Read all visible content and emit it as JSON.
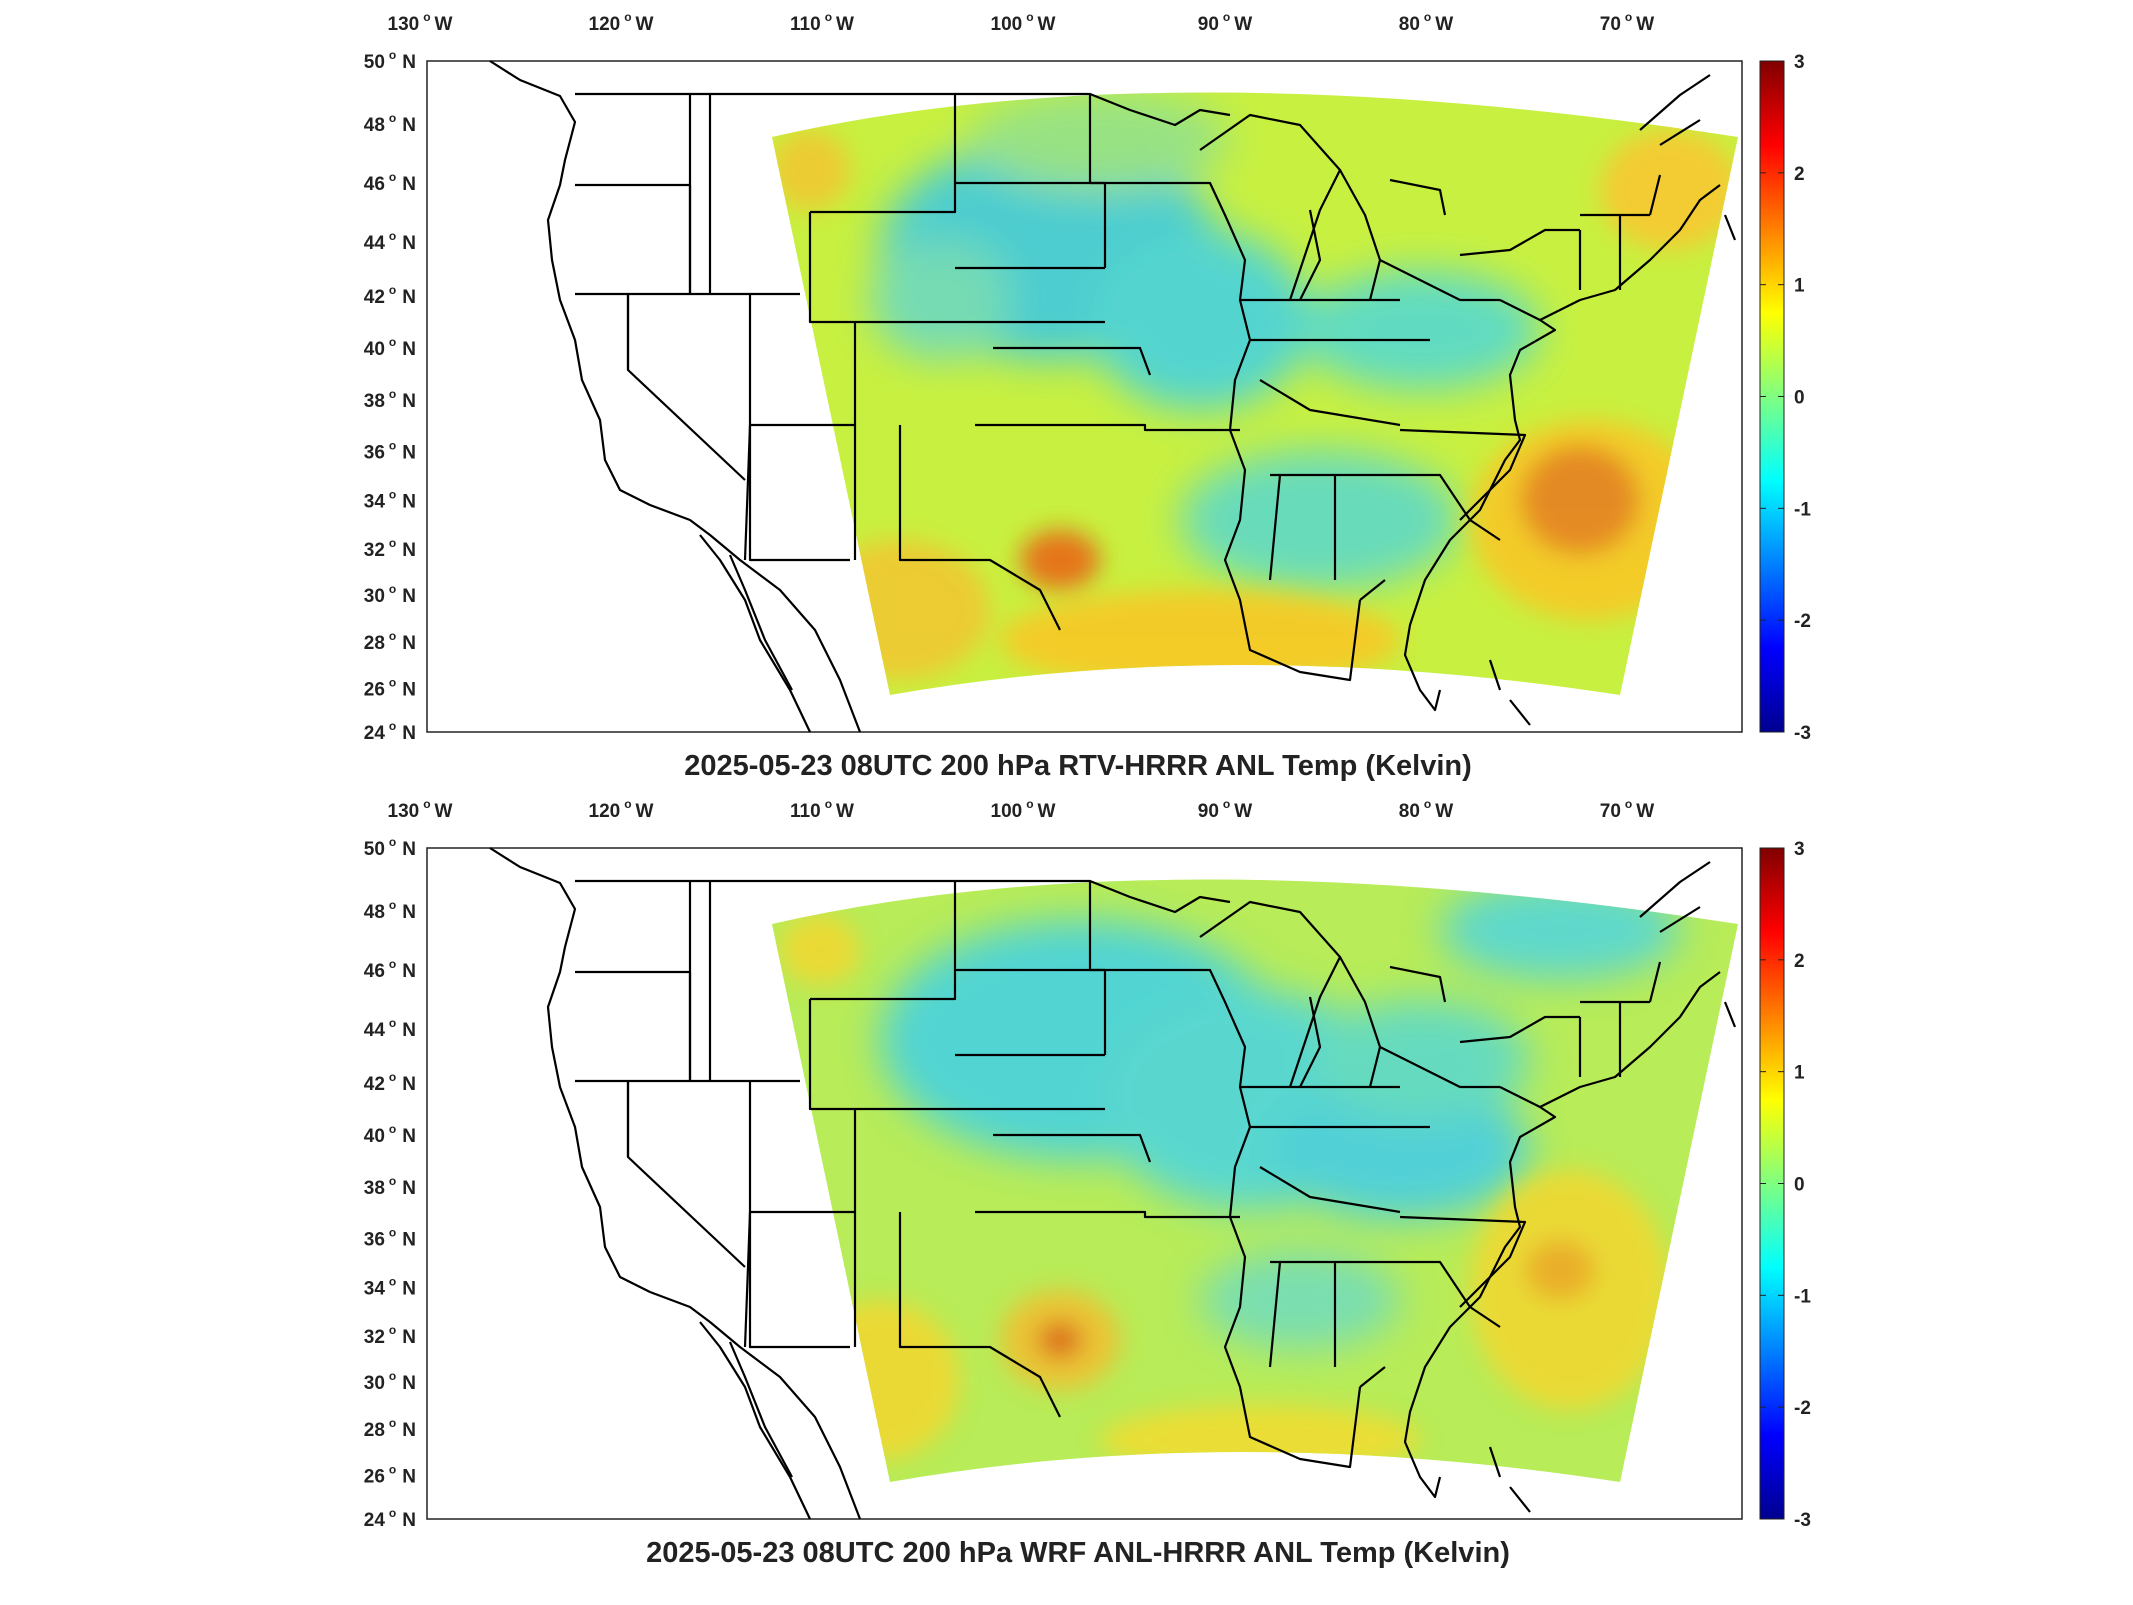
{
  "panels": [
    {
      "title": "2025-05-23 08UTC 200 hPa RTV-HRRR ANL Temp (Kelvin)",
      "lon_labels": [
        "130",
        "120",
        "110",
        "100",
        "90",
        "80",
        "70"
      ],
      "lon_suffix": "W",
      "lat_labels": [
        "50",
        "48",
        "46",
        "44",
        "42",
        "40",
        "38",
        "36",
        "34",
        "32",
        "30",
        "28",
        "26",
        "24"
      ],
      "lat_suffix": "N",
      "colorbar": {
        "ticks": [
          "3",
          "2",
          "1",
          "0",
          "-1",
          "-2",
          "-3"
        ],
        "range": [
          -3,
          3
        ],
        "colormap": "jet"
      },
      "field_palette": {
        "base": "#c8f040",
        "cool": "#38c8e8",
        "warm": "#f8c828",
        "hot": "#e85010"
      }
    },
    {
      "title": "2025-05-23 08UTC 200 hPa WRF ANL-HRRR ANL Temp (Kelvin)",
      "lon_labels": [
        "130",
        "120",
        "110",
        "100",
        "90",
        "80",
        "70"
      ],
      "lon_suffix": "W",
      "lat_labels": [
        "50",
        "48",
        "46",
        "44",
        "42",
        "40",
        "38",
        "36",
        "34",
        "32",
        "30",
        "28",
        "26",
        "24"
      ],
      "lat_suffix": "N",
      "colorbar": {
        "ticks": [
          "3",
          "2",
          "1",
          "0",
          "-1",
          "-2",
          "-3"
        ],
        "range": [
          -3,
          3
        ],
        "colormap": "jet"
      },
      "field_palette": {
        "base": "#b8ec58",
        "cool": "#40d0e8",
        "warm": "#f0d830",
        "hot": "#e86018"
      }
    }
  ]
}
